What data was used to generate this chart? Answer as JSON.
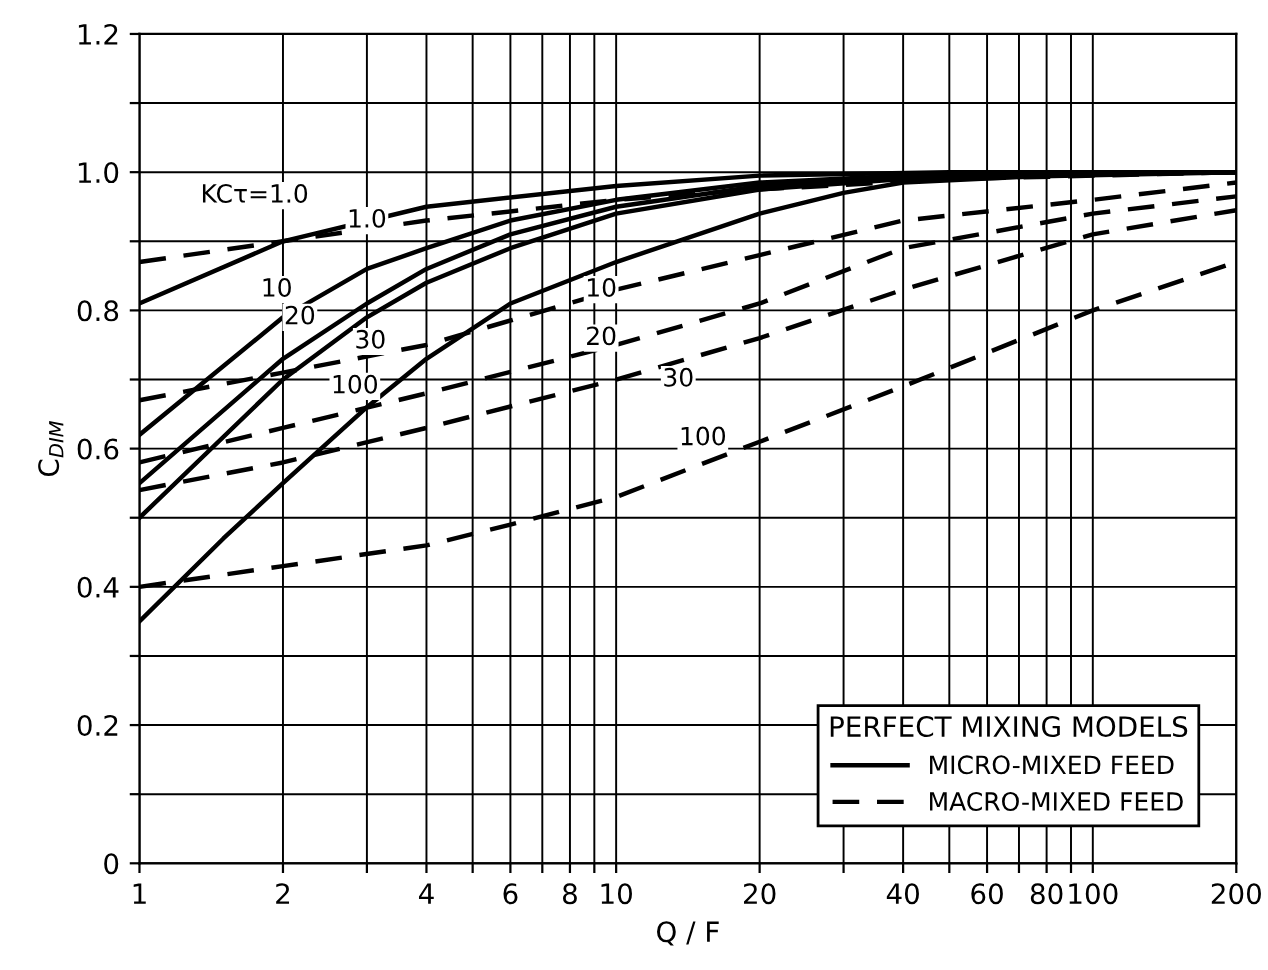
{
  "chart_data": {
    "type": "line",
    "xlabel": "Q / F",
    "ylabel": "C$_{DIM}$",
    "log": "x",
    "grid": true,
    "legend": "bottom right",
    "legend_title": "PERFECT MIXING MODELS",
    "marker": "none",
    "xlim": [
      1,
      200
    ],
    "ylim": [
      0,
      1.2
    ],
    "xticks": [
      1,
      2,
      {
        "value": 3,
        "label": null
      },
      4,
      {
        "value": 5,
        "label": null
      },
      6,
      {
        "value": 7,
        "label": null
      },
      8,
      {
        "value": 9,
        "label": null
      },
      10,
      20,
      {
        "value": 30,
        "label": null
      },
      40,
      {
        "value": 50,
        "label": null
      },
      60,
      {
        "value": 70,
        "label": null
      },
      80,
      {
        "value": 90,
        "label": null
      },
      100,
      200
    ],
    "yticks": [
      0,
      {
        "value": 0.1,
        "label": null
      },
      0.2,
      {
        "value": 0.3,
        "label": null
      },
      0.4,
      {
        "value": 0.5,
        "label": null
      },
      0.6,
      {
        "value": 0.7,
        "label": null
      },
      0.8,
      {
        "value": 0.9,
        "label": null
      },
      {
        "value": 1.0,
        "label": "1.0"
      },
      {
        "value": 1.1,
        "label": null
      },
      1.2
    ],
    "series": [
      {
        "name": "MICRO-MIXED FEED",
        "color": "#000000",
        "line_style": "solid",
        "x": [
          1,
          2,
          4,
          10,
          20,
          50,
          200
        ],
        "values": [
          0.81,
          0.9,
          0.95,
          0.98,
          0.995,
          1.0,
          1.0
        ]
      },
      {
        "color": "#000000",
        "line_style": "solid",
        "x": [
          1,
          2,
          3,
          4,
          6,
          10,
          20,
          40,
          200
        ],
        "values": [
          0.62,
          0.79,
          0.86,
          0.89,
          0.93,
          0.96,
          0.985,
          0.995,
          1.0
        ]
      },
      {
        "color": "#000000",
        "line_style": "solid",
        "x": [
          1,
          2,
          3,
          4,
          6,
          10,
          20,
          40,
          200
        ],
        "values": [
          0.55,
          0.73,
          0.81,
          0.86,
          0.91,
          0.95,
          0.98,
          0.995,
          1.0
        ]
      },
      {
        "color": "#000000",
        "line_style": "solid",
        "x": [
          1,
          2,
          3,
          4,
          6,
          10,
          20,
          40,
          200
        ],
        "values": [
          0.5,
          0.7,
          0.79,
          0.84,
          0.89,
          0.94,
          0.975,
          0.99,
          1.0
        ]
      },
      {
        "color": "#000000",
        "line_style": "solid",
        "x": [
          1,
          1.5,
          2,
          3,
          4,
          6,
          10,
          20,
          30,
          40,
          100,
          200
        ],
        "values": [
          0.35,
          0.47,
          0.55,
          0.66,
          0.73,
          0.81,
          0.87,
          0.94,
          0.97,
          0.985,
          0.998,
          1.0
        ]
      },
      {
        "name": "MACRO-MIXED FEED",
        "color": "#000000",
        "line_style": "dashed",
        "x": [
          1,
          2,
          4,
          10,
          20,
          50,
          200
        ],
        "values": [
          0.87,
          0.9,
          0.93,
          0.96,
          0.975,
          0.99,
          1.0
        ]
      },
      {
        "color": "#000000",
        "line_style": "dashed",
        "x": [
          1,
          2,
          4,
          10,
          20,
          40,
          100,
          200
        ],
        "values": [
          0.67,
          0.71,
          0.75,
          0.83,
          0.88,
          0.93,
          0.96,
          0.985
        ]
      },
      {
        "color": "#000000",
        "line_style": "dashed",
        "x": [
          1,
          2,
          4,
          10,
          20,
          40,
          100,
          200
        ],
        "values": [
          0.58,
          0.63,
          0.68,
          0.75,
          0.81,
          0.89,
          0.94,
          0.965
        ]
      },
      {
        "color": "#000000",
        "line_style": "dashed",
        "x": [
          1,
          2,
          4,
          10,
          20,
          40,
          100,
          200
        ],
        "values": [
          0.54,
          0.58,
          0.63,
          0.7,
          0.76,
          0.83,
          0.91,
          0.945
        ]
      },
      {
        "color": "#000000",
        "line_style": "dashed",
        "x": [
          1,
          2,
          4,
          6,
          10,
          20,
          40,
          100,
          200
        ],
        "values": [
          0.4,
          0.43,
          0.46,
          0.49,
          0.53,
          0.61,
          0.69,
          0.8,
          0.87
        ]
      }
    ],
    "annotations": [
      "KCτ=1.0",
      {
        "text": "1.0",
        "x": 3.0,
        "y": 0.93
      },
      {
        "text": "10",
        "x": 1.94,
        "y": 0.83
      },
      {
        "text": "20",
        "x": 2.17,
        "y": 0.79
      },
      {
        "text": "30",
        "x": 3.05,
        "y": 0.755
      },
      {
        "text": "100",
        "x": 2.83,
        "y": 0.69
      },
      {
        "text": "10",
        "x": 9.3,
        "y": 0.83
      },
      {
        "text": "20",
        "x": 9.3,
        "y": 0.76
      },
      {
        "text": "30",
        "x": 13.5,
        "y": 0.7
      },
      {
        "text": "100",
        "x": 15.2,
        "y": 0.615
      }
    ]
  }
}
